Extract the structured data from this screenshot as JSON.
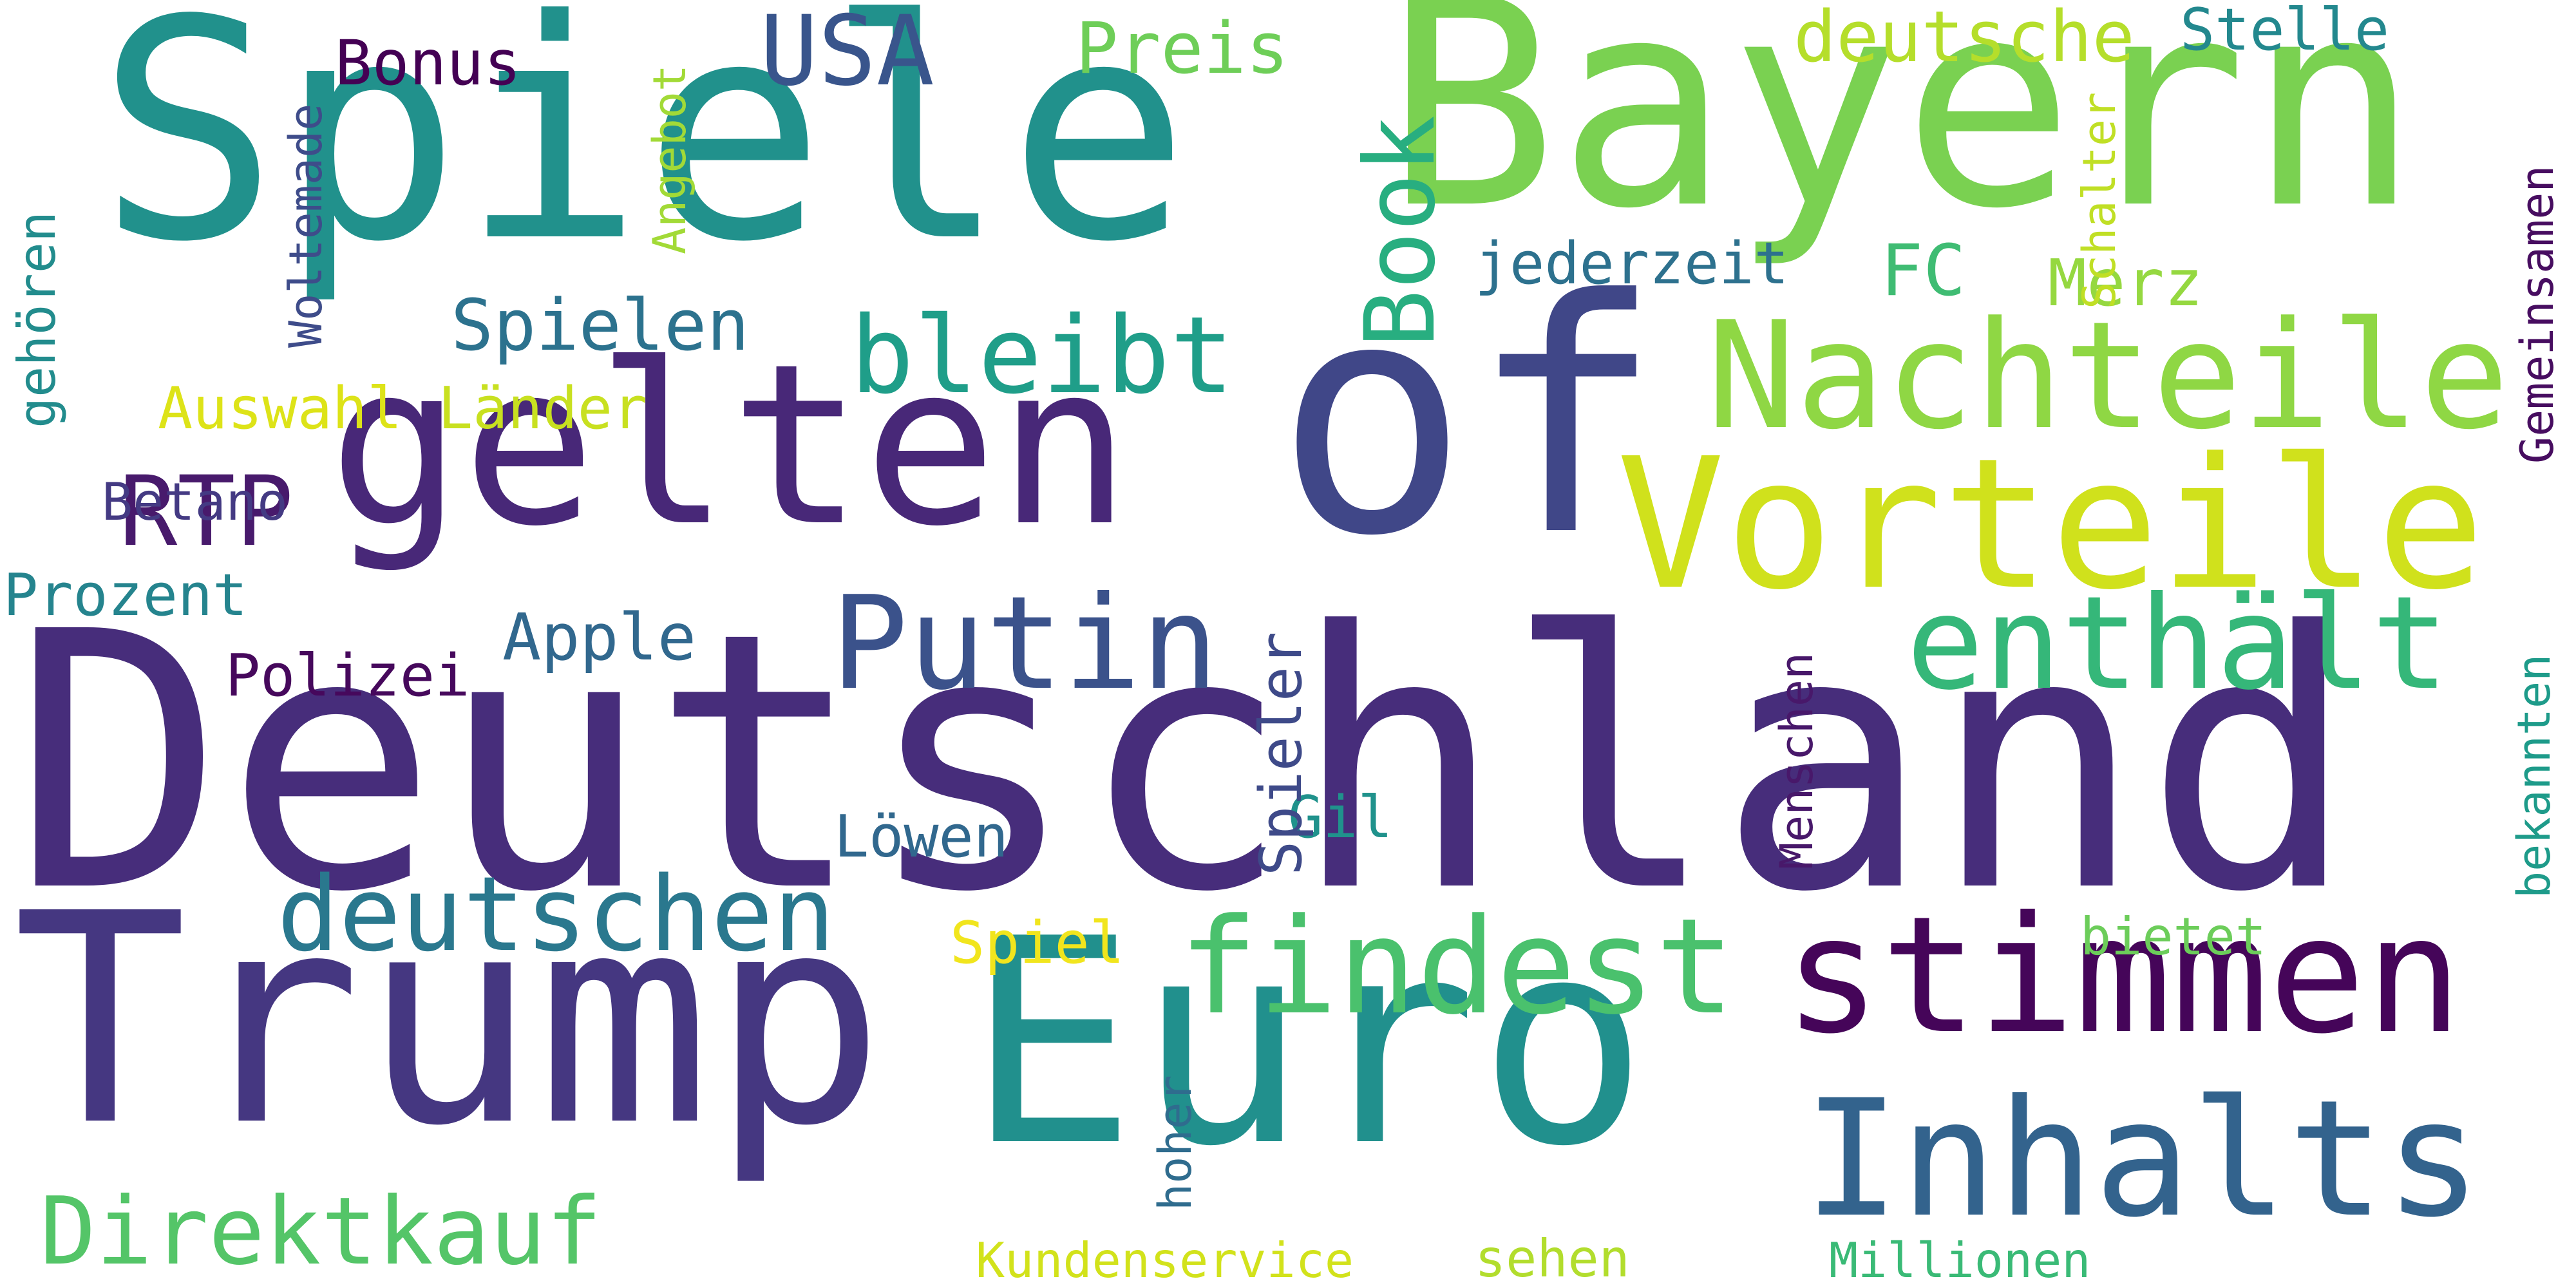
{
  "word_cloud": {
    "words": [
      {
        "text": "Deutschland",
        "color": "#472d7b"
      },
      {
        "text": "Spiele",
        "color": "#21918c"
      },
      {
        "text": "Bayern",
        "color": "#7ad151"
      },
      {
        "text": "Trump",
        "color": "#453781"
      },
      {
        "text": "Euro",
        "color": "#21908d"
      },
      {
        "text": "gelten",
        "color": "#482878"
      },
      {
        "text": "of",
        "color": "#404788"
      },
      {
        "text": "Vorteile",
        "color": "#d0e11c"
      },
      {
        "text": "Nachteile",
        "color": "#8fd744"
      },
      {
        "text": "stimmen",
        "color": "#450559"
      },
      {
        "text": "Inhalts",
        "color": "#33638d"
      },
      {
        "text": "findest",
        "color": "#4ac16d"
      },
      {
        "text": "enthält",
        "color": "#35b779"
      },
      {
        "text": "Putin",
        "color": "#3b528b"
      },
      {
        "text": "deutschen",
        "color": "#2a788e"
      },
      {
        "text": "Direktkauf",
        "color": "#54c568"
      },
      {
        "text": "bleibt",
        "color": "#1f9e89"
      },
      {
        "text": "Book",
        "color": "#28ae80"
      },
      {
        "text": "USA",
        "color": "#39558c"
      },
      {
        "text": "RTP",
        "color": "#481a6c"
      },
      {
        "text": "Spielen",
        "color": "#2c728e"
      },
      {
        "text": "deutsche",
        "color": "#b5de2b"
      },
      {
        "text": "Preis",
        "color": "#6ece58"
      },
      {
        "text": "Stelle",
        "color": "#23888e"
      },
      {
        "text": "Bonus",
        "color": "#440154"
      },
      {
        "text": "jederzeit",
        "color": "#2d718e"
      },
      {
        "text": "FC",
        "color": "#3fbc73"
      },
      {
        "text": "Merz",
        "color": "#95d840"
      },
      {
        "text": "Auswahl",
        "color": "#dde318"
      },
      {
        "text": "Länder",
        "color": "#c8e020"
      },
      {
        "text": "Betano",
        "color": "#443a83"
      },
      {
        "text": "Prozent",
        "color": "#25848e"
      },
      {
        "text": "Apple",
        "color": "#31688e"
      },
      {
        "text": "Polizei",
        "color": "#46085c"
      },
      {
        "text": "Löwen",
        "color": "#31688e"
      },
      {
        "text": "Gil",
        "color": "#20928c"
      },
      {
        "text": "Spiel",
        "color": "#f1e51d"
      },
      {
        "text": "bietet",
        "color": "#6ccd5a"
      },
      {
        "text": "Kundenservice",
        "color": "#d2e21b"
      },
      {
        "text": "sehen",
        "color": "#b2dd2d"
      },
      {
        "text": "Millionen",
        "color": "#3aba76"
      },
      {
        "text": "Spieler",
        "color": "#3e4a89"
      },
      {
        "text": "Menschen",
        "color": "#48186a"
      },
      {
        "text": "hoher",
        "color": "#2f6c8e"
      },
      {
        "text": "bekannten",
        "color": "#1e9b8a"
      },
      {
        "text": "Gemeinsamen",
        "color": "#470d60"
      },
      {
        "text": "Schalter",
        "color": "#c0df25"
      },
      {
        "text": "Angebot",
        "color": "#a2da37"
      },
      {
        "text": "Woltemade",
        "color": "#3e4c8a"
      },
      {
        "text": "gehören",
        "color": "#228c8d"
      }
    ]
  }
}
